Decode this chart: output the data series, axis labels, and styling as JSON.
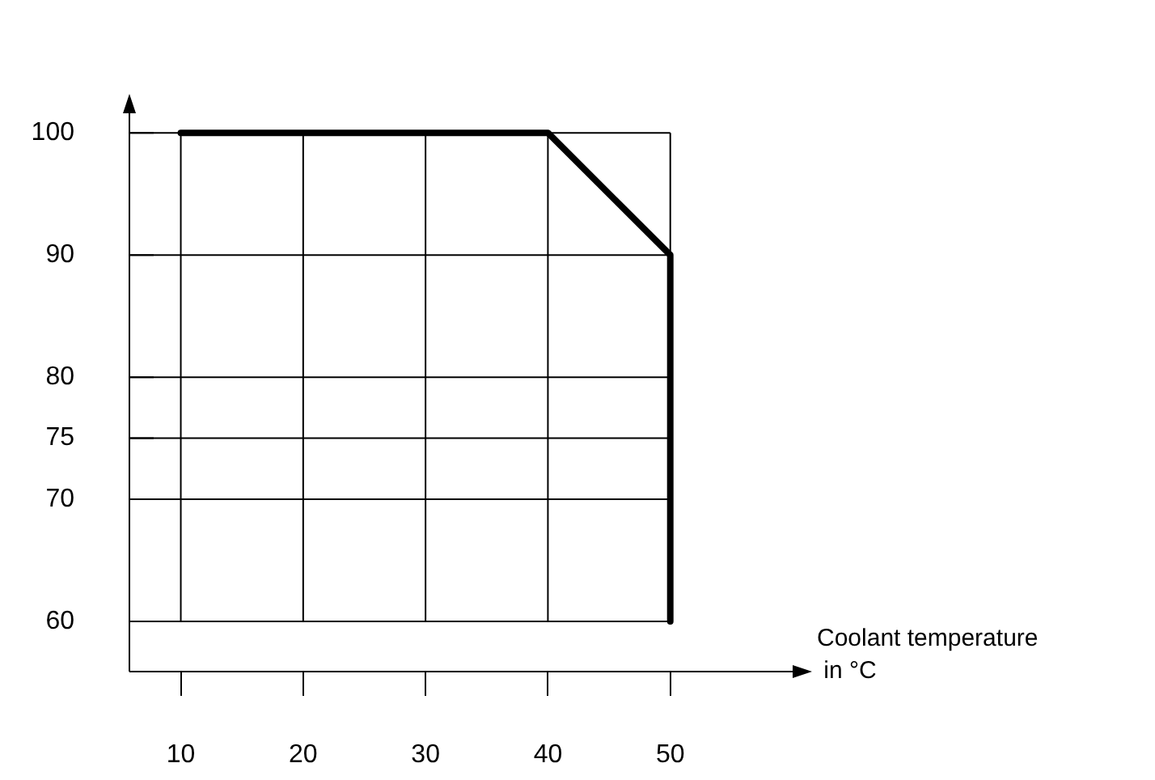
{
  "chart_data": {
    "type": "line",
    "xlabel": "Coolant temperature in °C",
    "series": [
      {
        "color": "#000000",
        "x": [
          10,
          40,
          50,
          50
        ],
        "values": [
          100,
          100,
          90,
          60
        ]
      }
    ],
    "xlim": [
      5.8,
      60
    ],
    "ylim": [
      55.9,
      101.6
    ],
    "xticks": [
      10,
      20,
      30,
      40,
      50
    ],
    "yticks": [
      60,
      70,
      75,
      80,
      90,
      100
    ],
    "grid": true,
    "legend": false,
    "marker": "none",
    "line_style": "solid"
  }
}
